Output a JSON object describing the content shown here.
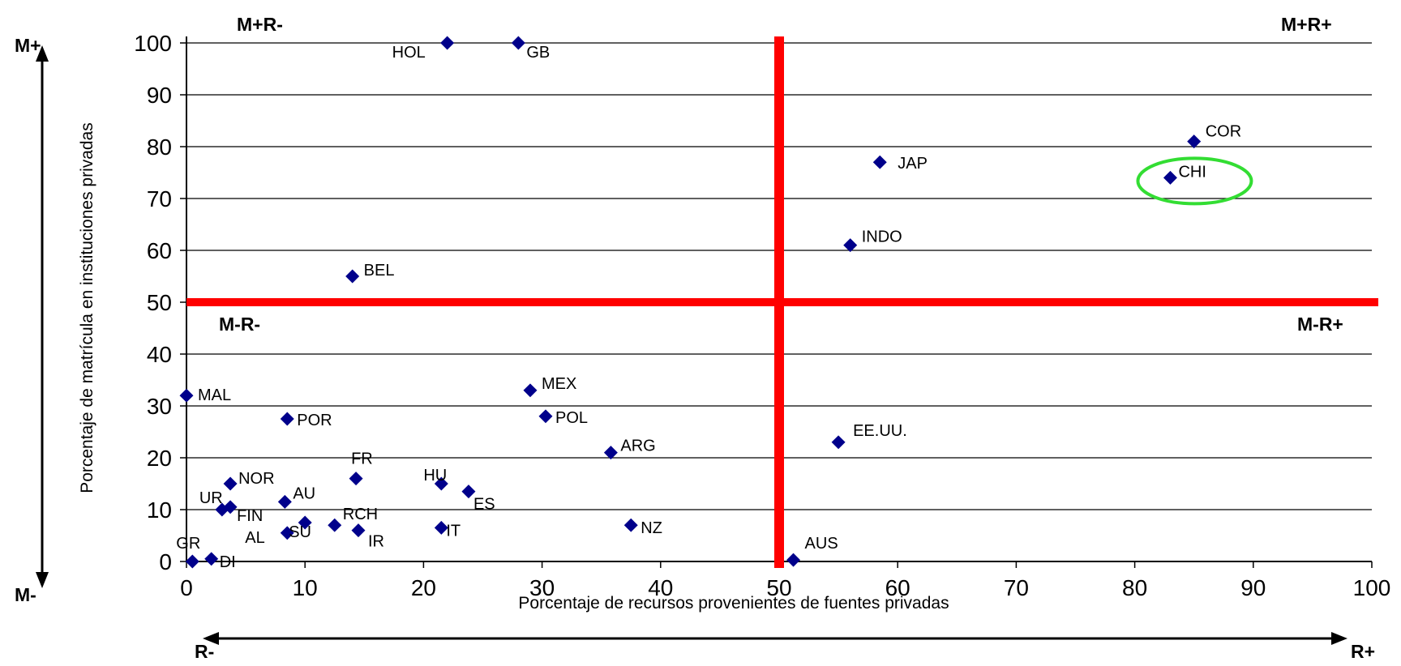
{
  "chart_data": {
    "type": "scatter",
    "title": "",
    "xlabel": "Porcentaje de recursos provenientes de fuentes privadas",
    "ylabel": "Porcentaje de matrícula en instituciones privadas",
    "xlim": [
      0,
      100
    ],
    "ylim": [
      0,
      100
    ],
    "xticks": [
      "0",
      "10",
      "20",
      "30",
      "40",
      "50",
      "60",
      "70",
      "80",
      "90",
      "100"
    ],
    "yticks": [
      "0",
      "10",
      "20",
      "30",
      "40",
      "50",
      "60",
      "70",
      "80",
      "90",
      "100"
    ],
    "grid": "horizontal",
    "marker_color": "#00008b",
    "divider_color": "#ff0000",
    "highlight_color": "#33dd33",
    "divider_x": 50,
    "divider_y": 50,
    "highlight_point": "CHI",
    "points": [
      {
        "label": "HOL",
        "x": 22,
        "y": 100
      },
      {
        "label": "GB",
        "x": 28,
        "y": 100
      },
      {
        "label": "COR",
        "x": 85,
        "y": 81
      },
      {
        "label": "JAP",
        "x": 58.5,
        "y": 77
      },
      {
        "label": "CHI",
        "x": 83,
        "y": 74
      },
      {
        "label": "INDO",
        "x": 56,
        "y": 61
      },
      {
        "label": "BEL",
        "x": 14,
        "y": 55
      },
      {
        "label": "MEX",
        "x": 29,
        "y": 33
      },
      {
        "label": "MAL",
        "x": 0,
        "y": 32
      },
      {
        "label": "POL",
        "x": 30.3,
        "y": 28
      },
      {
        "label": "POR",
        "x": 8.5,
        "y": 27.5
      },
      {
        "label": "EE.UU.",
        "x": 55,
        "y": 23
      },
      {
        "label": "ARG",
        "x": 35.8,
        "y": 21
      },
      {
        "label": "FR",
        "x": 14.3,
        "y": 16
      },
      {
        "label": "NOR",
        "x": 3.7,
        "y": 15
      },
      {
        "label": "HU",
        "x": 21.5,
        "y": 15
      },
      {
        "label": "ES",
        "x": 23.8,
        "y": 13.5
      },
      {
        "label": "AU",
        "x": 8.3,
        "y": 11.5
      },
      {
        "label": "UR",
        "x": 3,
        "y": 10
      },
      {
        "label": "FIN",
        "x": 3.7,
        "y": 10.5
      },
      {
        "label": "RCH",
        "x": 12.5,
        "y": 7
      },
      {
        "label": "NZ",
        "x": 37.5,
        "y": 7
      },
      {
        "label": "IT",
        "x": 21.5,
        "y": 6.5
      },
      {
        "label": "IR",
        "x": 14.5,
        "y": 6
      },
      {
        "label": "AL",
        "x": 8.5,
        "y": 5.5
      },
      {
        "label": "SU",
        "x": 10,
        "y": 7.5
      },
      {
        "label": "AUS",
        "x": 51.2,
        "y": 0.3
      },
      {
        "label": "DI",
        "x": 2.1,
        "y": 0.5
      },
      {
        "label": "GR",
        "x": 0.5,
        "y": 0
      }
    ],
    "quadrant_labels": {
      "top_left": "M+R-",
      "top_right": "M+R+",
      "mid_left": "M-R-",
      "mid_right": "M-R+"
    },
    "axis_arrows": {
      "y_top": "M+",
      "y_bottom": "M-",
      "x_left": "R-",
      "x_right": "R+"
    }
  }
}
